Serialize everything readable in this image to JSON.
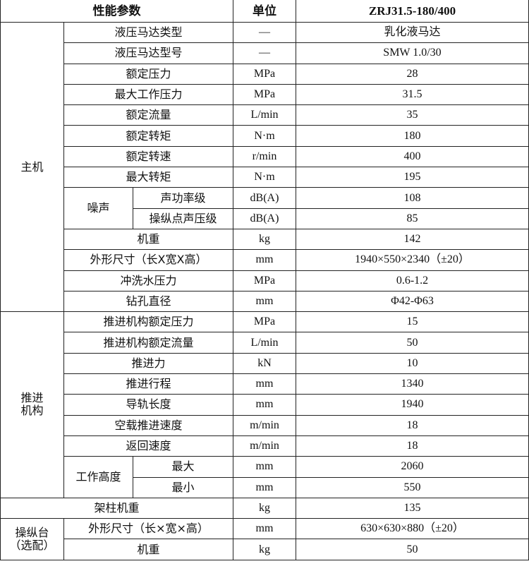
{
  "header": {
    "param": "性能参数",
    "unit": "单位",
    "model": "ZRJ31.5-180/400"
  },
  "sections": {
    "main": "主机",
    "noise": "噪声",
    "feed": "推进\n机构",
    "work_height": "工作高度",
    "console": "操纵台\n（选配）"
  },
  "rows": [
    {
      "label": "液压马达类型",
      "unit": "—",
      "value": "乳化液马达"
    },
    {
      "label": "液压马达型号",
      "unit": "—",
      "value": "SMW 1.0/30"
    },
    {
      "label": "额定压力",
      "unit": "MPa",
      "value": "28"
    },
    {
      "label": "最大工作压力",
      "unit": "MPa",
      "value": "31.5"
    },
    {
      "label": "额定流量",
      "unit": "L/min",
      "value": "35"
    },
    {
      "label": "额定转矩",
      "unit": "N·m",
      "value": "180"
    },
    {
      "label": "额定转速",
      "unit": "r/min",
      "value": "400"
    },
    {
      "label": "最大转矩",
      "unit": "N·m",
      "value": "195"
    },
    {
      "label": "声功率级",
      "unit": "dB(A)",
      "value": "108"
    },
    {
      "label": "操纵点声压级",
      "unit": "dB(A)",
      "value": "85"
    },
    {
      "label": "机重",
      "unit": "kg",
      "value": "142"
    },
    {
      "label": "外形尺寸（长X宽X高）",
      "unit": "mm",
      "value": "1940×550×2340（±20）"
    },
    {
      "label": "冲洗水压力",
      "unit": "MPa",
      "value": "0.6-1.2"
    },
    {
      "label": "钻孔直径",
      "unit": "mm",
      "value": "Φ42-Φ63"
    },
    {
      "label": "推进机构额定压力",
      "unit": "MPa",
      "value": "15"
    },
    {
      "label": "推进机构额定流量",
      "unit": "L/min",
      "value": "50"
    },
    {
      "label": "推进力",
      "unit": "kN",
      "value": "10"
    },
    {
      "label": "推进行程",
      "unit": "mm",
      "value": "1340"
    },
    {
      "label": "导轨长度",
      "unit": "mm",
      "value": "1940"
    },
    {
      "label": "空载推进速度",
      "unit": "m/min",
      "value": "18"
    },
    {
      "label": "返回速度",
      "unit": "m/min",
      "value": "18"
    },
    {
      "label": "最大",
      "unit": "mm",
      "value": "2060"
    },
    {
      "label": "最小",
      "unit": "mm",
      "value": "550"
    },
    {
      "label": "架柱机重",
      "unit": "kg",
      "value": "135"
    },
    {
      "label": "外形尺寸（长×宽×高）",
      "unit": "mm",
      "value": "630×630×880（±20）"
    },
    {
      "label": "机重",
      "unit": "kg",
      "value": "50"
    }
  ]
}
